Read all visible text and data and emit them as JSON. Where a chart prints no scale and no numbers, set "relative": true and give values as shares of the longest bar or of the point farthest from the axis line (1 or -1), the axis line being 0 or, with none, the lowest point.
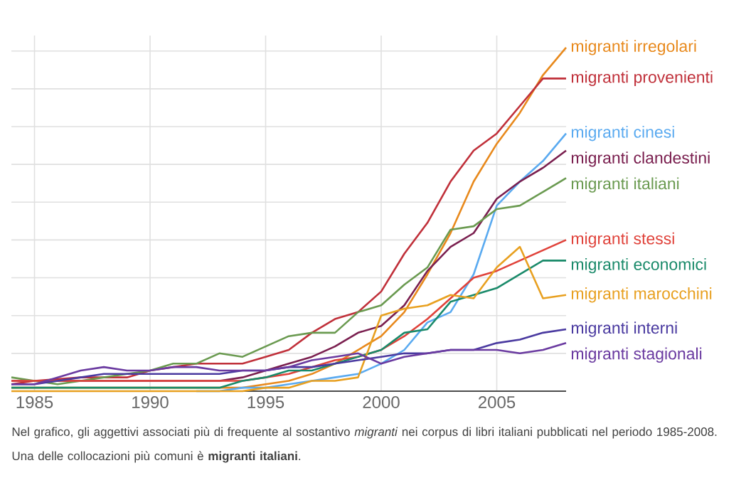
{
  "chart_data": {
    "type": "line",
    "relative": true,
    "grid": true,
    "xlim": [
      1984,
      2008
    ],
    "xticks": [
      1985,
      1990,
      1995,
      2000,
      2005
    ],
    "x": [
      1984,
      1985,
      1986,
      1987,
      1988,
      1989,
      1990,
      1991,
      1992,
      1993,
      1994,
      1995,
      1996,
      1997,
      1998,
      1999,
      2000,
      2001,
      2002,
      2003,
      2004,
      2005,
      2006,
      2007,
      2008
    ],
    "series": [
      {
        "name": "migranti irregolari",
        "color": "#e8891c",
        "values": [
          0.01,
          0.01,
          0.01,
          0.01,
          0.01,
          0.01,
          0.01,
          0.01,
          0.01,
          0.01,
          0.01,
          0.02,
          0.03,
          0.05,
          0.08,
          0.12,
          0.16,
          0.23,
          0.34,
          0.46,
          0.61,
          0.72,
          0.81,
          0.92,
          1.0
        ]
      },
      {
        "name": "migranti provenienti",
        "color": "#c0303a",
        "values": [
          0.02,
          0.03,
          0.035,
          0.04,
          0.04,
          0.04,
          0.06,
          0.07,
          0.08,
          0.08,
          0.08,
          0.1,
          0.12,
          0.17,
          0.21,
          0.23,
          0.29,
          0.4,
          0.49,
          0.61,
          0.7,
          0.75,
          0.83,
          0.91,
          0.91
        ]
      },
      {
        "name": "migranti cinesi",
        "color": "#5aaaf0",
        "values": [
          null,
          null,
          null,
          null,
          null,
          null,
          null,
          null,
          0.0,
          0.0,
          0.01,
          0.01,
          0.02,
          0.03,
          0.04,
          0.05,
          0.08,
          0.12,
          0.2,
          0.23,
          0.34,
          0.54,
          0.61,
          0.67,
          0.75
        ]
      },
      {
        "name": "migranti clandestini",
        "color": "#7a1f4f",
        "values": [
          0.03,
          0.03,
          0.03,
          0.03,
          0.03,
          0.03,
          0.03,
          0.03,
          0.03,
          0.03,
          0.04,
          0.06,
          0.08,
          0.1,
          0.13,
          0.17,
          0.19,
          0.25,
          0.35,
          0.42,
          0.46,
          0.56,
          0.61,
          0.65,
          0.7
        ]
      },
      {
        "name": "migranti italiani",
        "color": "#6a9a50",
        "values": [
          0.04,
          0.03,
          0.02,
          0.03,
          0.04,
          0.05,
          0.06,
          0.08,
          0.08,
          0.11,
          0.1,
          0.13,
          0.16,
          0.17,
          0.17,
          0.23,
          0.25,
          0.31,
          0.36,
          0.47,
          0.48,
          0.53,
          0.54,
          0.58,
          0.62
        ]
      },
      {
        "name": "migranti stessi",
        "color": "#e0423a",
        "values": [
          0.03,
          0.03,
          0.03,
          0.03,
          0.03,
          0.03,
          0.03,
          0.03,
          0.03,
          0.03,
          0.03,
          0.04,
          0.05,
          0.07,
          0.09,
          0.1,
          0.12,
          0.16,
          0.21,
          0.27,
          0.33,
          0.35,
          0.38,
          0.41,
          0.44
        ]
      },
      {
        "name": "migranti economici",
        "color": "#1a8a6a",
        "values": [
          0.01,
          0.01,
          0.01,
          0.01,
          0.01,
          0.01,
          0.01,
          0.01,
          0.01,
          0.01,
          0.03,
          0.04,
          0.06,
          0.06,
          0.08,
          0.1,
          0.12,
          0.17,
          0.18,
          0.26,
          0.28,
          0.3,
          0.34,
          0.38,
          0.38
        ]
      },
      {
        "name": "migranti marocchini",
        "color": "#e8a020",
        "values": [
          0.0,
          0.0,
          0.0,
          0.0,
          0.0,
          0.0,
          0.0,
          0.0,
          0.0,
          0.0,
          0.0,
          0.01,
          0.01,
          0.03,
          0.03,
          0.04,
          0.22,
          0.24,
          0.25,
          0.28,
          0.27,
          0.36,
          0.42,
          0.27,
          0.28
        ]
      },
      {
        "name": "migranti interni",
        "color": "#4a3aa0",
        "values": [
          0.02,
          0.02,
          0.03,
          0.04,
          0.05,
          0.05,
          0.05,
          0.05,
          0.05,
          0.05,
          0.06,
          0.06,
          0.07,
          0.07,
          0.08,
          0.09,
          0.1,
          0.11,
          0.11,
          0.12,
          0.12,
          0.14,
          0.15,
          0.17,
          0.18
        ]
      },
      {
        "name": "migranti stagionali",
        "color": "#6a3aa0",
        "values": [
          0.02,
          0.02,
          0.04,
          0.06,
          0.07,
          0.06,
          0.06,
          0.07,
          0.07,
          0.06,
          0.06,
          0.06,
          0.07,
          0.09,
          0.1,
          0.11,
          0.08,
          0.1,
          0.11,
          0.12,
          0.12,
          0.12,
          0.11,
          0.12,
          0.14
        ]
      }
    ],
    "annotations": [
      "Nel grafico, gli aggettivi associati più di frequente al sostantivo *migranti* nei corpus di libri italiani pubblicati nel periodo 1985-2008. Una delle collocazioni più comuni è **migranti italiani**."
    ]
  }
}
